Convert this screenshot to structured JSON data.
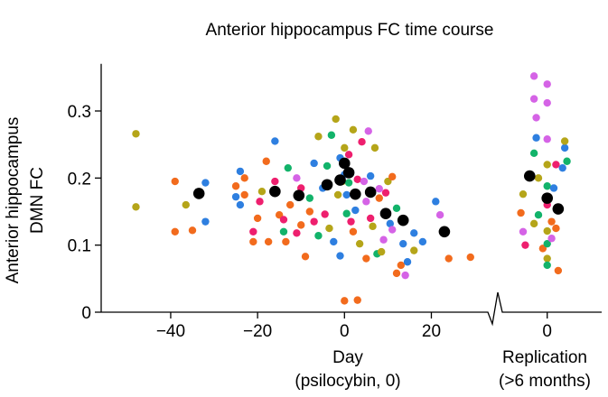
{
  "chart_data": {
    "type": "scatter",
    "title": "Anterior hippocampus FC time course",
    "ylabel_lines": [
      "Anterior hippocampus",
      "DMN FC"
    ],
    "xlabel_lines": [
      "Day",
      "(psilocybin, 0)"
    ],
    "replication_label_lines": [
      "Replication",
      "(>6 months)"
    ],
    "ylim": [
      0,
      0.33
    ],
    "yticks": [
      0,
      0.1,
      0.2,
      0.3
    ],
    "ytick_labels": [
      "0",
      "0.1",
      "0.2",
      "0.3"
    ],
    "xlim": [
      -56,
      33
    ],
    "xticks": [
      -40,
      -20,
      0,
      20
    ],
    "xtick_labels": [
      "−40",
      "−20",
      "0",
      "20"
    ],
    "replication_xlim": [
      -9,
      12
    ],
    "replication_xticks": [
      0
    ],
    "replication_xtick_labels": [
      "0"
    ],
    "axis_break": true,
    "grid": false,
    "legend": "none",
    "colors": {
      "mean": "#000000",
      "participants": [
        "#f26b1d",
        "#2e7fe0",
        "#ee1f6e",
        "#12b36a",
        "#d563e6",
        "#b5a519"
      ]
    },
    "mean_series": {
      "name": "",
      "main": [
        {
          "x": -33.5,
          "y": 0.177
        },
        {
          "x": -16,
          "y": 0.18
        },
        {
          "x": -10.5,
          "y": 0.174
        },
        {
          "x": -4,
          "y": 0.19
        },
        {
          "x": -1,
          "y": 0.197
        },
        {
          "x": 0,
          "y": 0.222
        },
        {
          "x": 1,
          "y": 0.208
        },
        {
          "x": 2.5,
          "y": 0.176
        },
        {
          "x": 6,
          "y": 0.179
        },
        {
          "x": 9.5,
          "y": 0.147
        },
        {
          "x": 13.5,
          "y": 0.137
        },
        {
          "x": 23,
          "y": 0.12
        }
      ],
      "replication": [
        {
          "x": -4,
          "y": 0.203
        },
        {
          "x": 0,
          "y": 0.17
        },
        {
          "x": 2.5,
          "y": 0.154
        }
      ]
    },
    "participant_points": {
      "main": [
        [
          -48,
          0.266,
          5
        ],
        [
          -48,
          0.157,
          5
        ],
        [
          -39,
          0.195,
          0
        ],
        [
          -39,
          0.12,
          0
        ],
        [
          -36.5,
          0.16,
          5
        ],
        [
          -35,
          0.122,
          0
        ],
        [
          -32,
          0.193,
          1
        ],
        [
          -32,
          0.135,
          1
        ],
        [
          -25,
          0.172,
          1
        ],
        [
          -25,
          0.188,
          0
        ],
        [
          -24,
          0.16,
          1
        ],
        [
          -24,
          0.21,
          1
        ],
        [
          -23,
          0.2,
          0
        ],
        [
          -23,
          0.175,
          0
        ],
        [
          -21,
          0.105,
          0
        ],
        [
          -21,
          0.12,
          2
        ],
        [
          -20,
          0.14,
          0
        ],
        [
          -19.5,
          0.165,
          2
        ],
        [
          -19,
          0.18,
          5
        ],
        [
          -18,
          0.225,
          0
        ],
        [
          -17.5,
          0.105,
          0
        ],
        [
          -16,
          0.195,
          2
        ],
        [
          -16,
          0.255,
          1
        ],
        [
          -15,
          0.145,
          0
        ],
        [
          -14,
          0.12,
          3
        ],
        [
          -14,
          0.138,
          2
        ],
        [
          -13.5,
          0.105,
          0
        ],
        [
          -13,
          0.215,
          3
        ],
        [
          -12.5,
          0.16,
          0
        ],
        [
          -11,
          0.118,
          2
        ],
        [
          -11,
          0.2,
          4
        ],
        [
          -10,
          0.185,
          2
        ],
        [
          -10,
          0.13,
          0
        ],
        [
          -9,
          0.083,
          0
        ],
        [
          -8,
          0.15,
          0
        ],
        [
          -8,
          0.17,
          3
        ],
        [
          -7,
          0.135,
          2
        ],
        [
          -7,
          0.222,
          1
        ],
        [
          -6,
          0.114,
          3
        ],
        [
          -6,
          0.262,
          5
        ],
        [
          -5,
          0.185,
          1
        ],
        [
          -4.5,
          0.146,
          2
        ],
        [
          -4,
          0.218,
          3
        ],
        [
          -3.5,
          0.125,
          5
        ],
        [
          -3,
          0.264,
          3
        ],
        [
          -2.5,
          0.105,
          1
        ],
        [
          -2,
          0.288,
          5
        ],
        [
          -1.5,
          0.175,
          5
        ],
        [
          -1,
          0.23,
          1
        ],
        [
          -1,
          0.084,
          1
        ],
        [
          -0.5,
          0.195,
          5
        ],
        [
          0,
          0.245,
          5
        ],
        [
          0,
          0.205,
          1
        ],
        [
          0,
          0.017,
          0
        ],
        [
          0.5,
          0.147,
          3
        ],
        [
          0.5,
          0.175,
          1
        ],
        [
          1,
          0.193,
          3
        ],
        [
          1,
          0.235,
          2
        ],
        [
          1.5,
          0.135,
          2
        ],
        [
          2,
          0.272,
          5
        ],
        [
          2,
          0.12,
          0
        ],
        [
          2.5,
          0.152,
          1
        ],
        [
          3,
          0.198,
          2
        ],
        [
          3,
          0.018,
          0
        ],
        [
          3.5,
          0.102,
          5
        ],
        [
          4,
          0.254,
          2
        ],
        [
          4.5,
          0.195,
          4
        ],
        [
          5,
          0.165,
          4
        ],
        [
          5,
          0.08,
          0
        ],
        [
          5.5,
          0.27,
          4
        ],
        [
          6,
          0.14,
          2
        ],
        [
          6,
          0.203,
          1
        ],
        [
          6.5,
          0.128,
          5
        ],
        [
          7,
          0.245,
          5
        ],
        [
          7.5,
          0.087,
          3
        ],
        [
          8,
          0.17,
          0
        ],
        [
          8,
          0.184,
          4
        ],
        [
          8.5,
          0.09,
          5
        ],
        [
          9,
          0.108,
          4
        ],
        [
          9.5,
          0.178,
          2
        ],
        [
          10,
          0.195,
          5
        ],
        [
          10.5,
          0.132,
          1
        ],
        [
          11,
          0.202,
          0
        ],
        [
          11,
          0.123,
          4
        ],
        [
          12,
          0.155,
          3
        ],
        [
          12,
          0.058,
          0
        ],
        [
          13,
          0.07,
          0
        ],
        [
          13.5,
          0.102,
          1
        ],
        [
          14,
          0.055,
          4
        ],
        [
          14.5,
          0.075,
          1
        ],
        [
          16,
          0.118,
          1
        ],
        [
          16,
          0.092,
          5
        ],
        [
          18,
          0.105,
          1
        ],
        [
          21,
          0.165,
          1
        ],
        [
          22,
          0.145,
          4
        ],
        [
          24,
          0.08,
          0
        ],
        [
          29,
          0.082,
          0
        ]
      ],
      "replication": [
        [
          -6,
          0.148,
          0
        ],
        [
          -5.5,
          0.12,
          4
        ],
        [
          -5.5,
          0.176,
          5
        ],
        [
          -5,
          0.1,
          2
        ],
        [
          -3,
          0.352,
          4
        ],
        [
          -3,
          0.318,
          4
        ],
        [
          -2.5,
          0.29,
          4
        ],
        [
          -2.5,
          0.26,
          1
        ],
        [
          -3,
          0.237,
          3
        ],
        [
          -2,
          0.2,
          5
        ],
        [
          -3,
          0.132,
          5
        ],
        [
          -2,
          0.145,
          3
        ],
        [
          -1,
          0.095,
          0
        ],
        [
          0,
          0.34,
          4
        ],
        [
          0,
          0.312,
          4
        ],
        [
          0,
          0.258,
          4
        ],
        [
          0,
          0.22,
          5
        ],
        [
          0,
          0.188,
          3
        ],
        [
          0,
          0.16,
          2
        ],
        [
          0,
          0.121,
          5
        ],
        [
          0,
          0.102,
          3
        ],
        [
          0,
          0.08,
          5
        ],
        [
          0,
          0.07,
          3
        ],
        [
          1,
          0.135,
          0
        ],
        [
          1,
          0.11,
          4
        ],
        [
          1.5,
          0.185,
          1
        ],
        [
          2,
          0.22,
          2
        ],
        [
          2,
          0.125,
          0
        ],
        [
          2.5,
          0.062,
          0
        ],
        [
          3.5,
          0.215,
          1
        ],
        [
          4,
          0.245,
          1
        ],
        [
          4.5,
          0.225,
          3
        ],
        [
          4,
          0.255,
          5
        ]
      ]
    }
  }
}
